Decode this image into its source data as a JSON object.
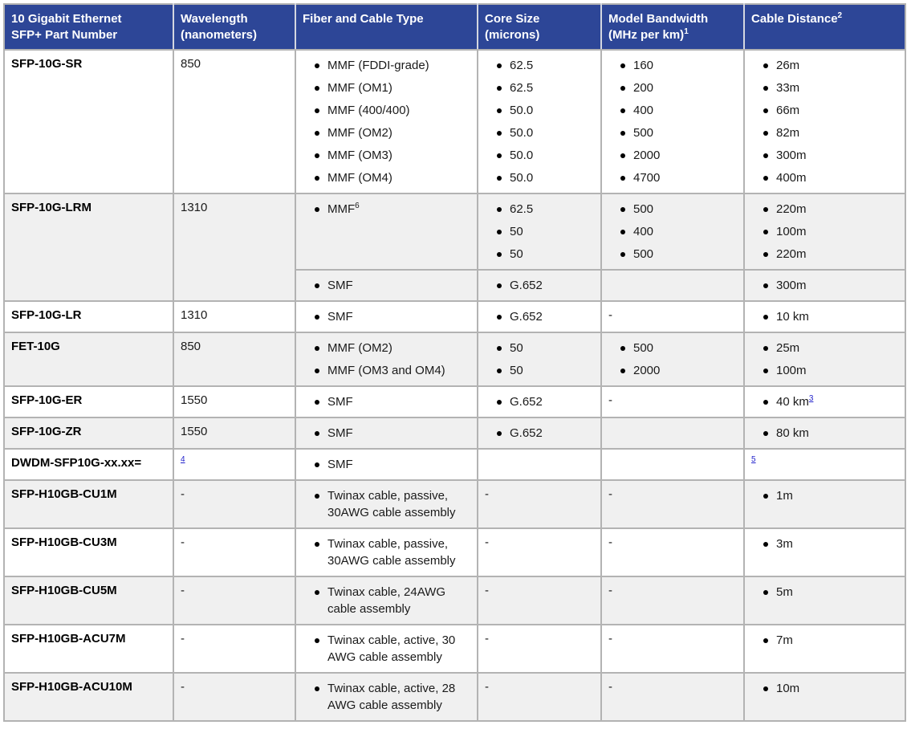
{
  "colors": {
    "header_bg": "#2d4697",
    "stripe": "#f0f0f0",
    "border": "#b3b3b3",
    "link": "#2323cc"
  },
  "header": {
    "columns": [
      {
        "id": "part-number",
        "lines": [
          "10 Gigabit Ethernet",
          "SFP+ Part Number"
        ]
      },
      {
        "id": "wavelength",
        "lines": [
          "Wavelength",
          "(nanometers)"
        ]
      },
      {
        "id": "fiber-cable-type",
        "lines": [
          "Fiber and Cable Type"
        ]
      },
      {
        "id": "core-size",
        "lines": [
          "Core Size",
          "(microns)"
        ]
      },
      {
        "id": "model-bandwidth",
        "lines": [
          "Model Bandwidth",
          "(MHz per km)"
        ],
        "sup": "1"
      },
      {
        "id": "cable-distance",
        "lines": [
          "Cable Distance"
        ],
        "sup": "2"
      }
    ]
  },
  "rows": [
    {
      "shade": false,
      "cells": [
        {
          "type": "part",
          "value": "SFP-10G-SR"
        },
        {
          "type": "text",
          "value": "850"
        },
        {
          "type": "bullets",
          "items": [
            {
              "t": "MMF (FDDI-grade)"
            },
            {
              "t": "MMF (OM1)"
            },
            {
              "t": "MMF (400/400)"
            },
            {
              "t": "MMF (OM2)"
            },
            {
              "t": "MMF (OM3)"
            },
            {
              "t": "MMF (OM4)"
            }
          ]
        },
        {
          "type": "bullets",
          "items": [
            {
              "t": "62.5"
            },
            {
              "t": "62.5"
            },
            {
              "t": "50.0"
            },
            {
              "t": "50.0"
            },
            {
              "t": "50.0"
            },
            {
              "t": "50.0"
            }
          ]
        },
        {
          "type": "bullets",
          "items": [
            {
              "t": "160"
            },
            {
              "t": "200"
            },
            {
              "t": "400"
            },
            {
              "t": "500"
            },
            {
              "t": "2000"
            },
            {
              "t": "4700"
            }
          ]
        },
        {
          "type": "bullets",
          "items": [
            {
              "t": "26m"
            },
            {
              "t": "33m"
            },
            {
              "t": "66m"
            },
            {
              "t": "82m"
            },
            {
              "t": "300m"
            },
            {
              "t": "400m"
            }
          ]
        }
      ]
    },
    {
      "shade": true,
      "cells": [
        {
          "type": "part",
          "value": "SFP-10G-LRM",
          "rowspan": 2
        },
        {
          "type": "text",
          "value": "1310",
          "rowspan": 2
        },
        {
          "type": "bullets",
          "items": [
            {
              "t": "MMF",
              "sup": "6"
            }
          ]
        },
        {
          "type": "bullets",
          "items": [
            {
              "t": "62.5"
            },
            {
              "t": "50"
            },
            {
              "t": "50"
            }
          ]
        },
        {
          "type": "bullets",
          "items": [
            {
              "t": "500"
            },
            {
              "t": "400"
            },
            {
              "t": "500"
            }
          ]
        },
        {
          "type": "bullets",
          "items": [
            {
              "t": "220m"
            },
            {
              "t": "100m"
            },
            {
              "t": "220m"
            }
          ]
        }
      ]
    },
    {
      "shade": true,
      "continuation": true,
      "cells": [
        {
          "type": "bullets",
          "items": [
            {
              "t": "SMF"
            }
          ]
        },
        {
          "type": "bullets",
          "items": [
            {
              "t": "G.652"
            }
          ]
        },
        {
          "type": "empty"
        },
        {
          "type": "bullets",
          "items": [
            {
              "t": "300m"
            }
          ]
        }
      ]
    },
    {
      "shade": false,
      "cells": [
        {
          "type": "part",
          "value": "SFP-10G-LR"
        },
        {
          "type": "text",
          "value": "1310"
        },
        {
          "type": "bullets",
          "items": [
            {
              "t": "SMF"
            }
          ]
        },
        {
          "type": "bullets",
          "items": [
            {
              "t": "G.652"
            }
          ]
        },
        {
          "type": "text",
          "value": "-"
        },
        {
          "type": "bullets",
          "items": [
            {
              "t": "10 km"
            }
          ]
        }
      ]
    },
    {
      "shade": true,
      "cells": [
        {
          "type": "part",
          "value": "FET-10G"
        },
        {
          "type": "text",
          "value": "850"
        },
        {
          "type": "bullets",
          "items": [
            {
              "t": "MMF (OM2)"
            },
            {
              "t": "MMF (OM3 and OM4)"
            }
          ]
        },
        {
          "type": "bullets",
          "items": [
            {
              "t": "50"
            },
            {
              "t": "50"
            }
          ]
        },
        {
          "type": "bullets",
          "items": [
            {
              "t": "500"
            },
            {
              "t": "2000"
            }
          ]
        },
        {
          "type": "bullets",
          "items": [
            {
              "t": "25m"
            },
            {
              "t": "100m"
            }
          ]
        }
      ]
    },
    {
      "shade": false,
      "cells": [
        {
          "type": "part",
          "value": "SFP-10G-ER"
        },
        {
          "type": "text",
          "value": "1550"
        },
        {
          "type": "bullets",
          "items": [
            {
              "t": "SMF"
            }
          ]
        },
        {
          "type": "bullets",
          "items": [
            {
              "t": "G.652"
            }
          ]
        },
        {
          "type": "text",
          "value": "-"
        },
        {
          "type": "bullets",
          "items": [
            {
              "t": "40 km",
              "supLink": "3"
            }
          ]
        }
      ]
    },
    {
      "shade": true,
      "cells": [
        {
          "type": "part",
          "value": "SFP-10G-ZR"
        },
        {
          "type": "text",
          "value": "1550"
        },
        {
          "type": "bullets",
          "items": [
            {
              "t": "SMF"
            }
          ]
        },
        {
          "type": "bullets",
          "items": [
            {
              "t": "G.652"
            }
          ]
        },
        {
          "type": "empty"
        },
        {
          "type": "bullets",
          "items": [
            {
              "t": "80 km"
            }
          ]
        }
      ]
    },
    {
      "shade": false,
      "cells": [
        {
          "type": "part",
          "value": "DWDM-SFP10G-xx.xx="
        },
        {
          "type": "suplink",
          "value": "4"
        },
        {
          "type": "bullets",
          "items": [
            {
              "t": "SMF"
            }
          ]
        },
        {
          "type": "empty"
        },
        {
          "type": "empty"
        },
        {
          "type": "suplink",
          "value": "5"
        }
      ]
    },
    {
      "shade": true,
      "cells": [
        {
          "type": "part",
          "value": "SFP-H10GB-CU1M"
        },
        {
          "type": "text",
          "value": "-"
        },
        {
          "type": "bullets",
          "items": [
            {
              "t": "Twinax cable, passive, 30AWG cable assembly"
            }
          ]
        },
        {
          "type": "text",
          "value": "-"
        },
        {
          "type": "text",
          "value": "-"
        },
        {
          "type": "bullets",
          "items": [
            {
              "t": "1m"
            }
          ]
        }
      ]
    },
    {
      "shade": false,
      "cells": [
        {
          "type": "part",
          "value": "SFP-H10GB-CU3M"
        },
        {
          "type": "text",
          "value": "-"
        },
        {
          "type": "bullets",
          "items": [
            {
              "t": "Twinax cable, passive, 30AWG cable assembly"
            }
          ]
        },
        {
          "type": "text",
          "value": "-"
        },
        {
          "type": "text",
          "value": "-"
        },
        {
          "type": "bullets",
          "items": [
            {
              "t": "3m"
            }
          ]
        }
      ]
    },
    {
      "shade": true,
      "cells": [
        {
          "type": "part",
          "value": "SFP-H10GB-CU5M"
        },
        {
          "type": "text",
          "value": "-"
        },
        {
          "type": "bullets",
          "items": [
            {
              "t": "Twinax cable, 24AWG cable assembly"
            }
          ]
        },
        {
          "type": "text",
          "value": "-"
        },
        {
          "type": "text",
          "value": "-"
        },
        {
          "type": "bullets",
          "items": [
            {
              "t": "5m"
            }
          ]
        }
      ]
    },
    {
      "shade": false,
      "cells": [
        {
          "type": "part",
          "value": "SFP-H10GB-ACU7M"
        },
        {
          "type": "text",
          "value": "-"
        },
        {
          "type": "bullets",
          "items": [
            {
              "t": "Twinax cable, active, 30 AWG cable assembly"
            }
          ]
        },
        {
          "type": "text",
          "value": "-"
        },
        {
          "type": "text",
          "value": "-"
        },
        {
          "type": "bullets",
          "items": [
            {
              "t": "7m"
            }
          ]
        }
      ]
    },
    {
      "shade": true,
      "cells": [
        {
          "type": "part",
          "value": "SFP-H10GB-ACU10M"
        },
        {
          "type": "text",
          "value": "-"
        },
        {
          "type": "bullets",
          "items": [
            {
              "t": "Twinax cable, active, 28 AWG cable assembly"
            }
          ]
        },
        {
          "type": "text",
          "value": "-"
        },
        {
          "type": "text",
          "value": "-"
        },
        {
          "type": "bullets",
          "items": [
            {
              "t": "10m"
            }
          ]
        }
      ]
    }
  ]
}
